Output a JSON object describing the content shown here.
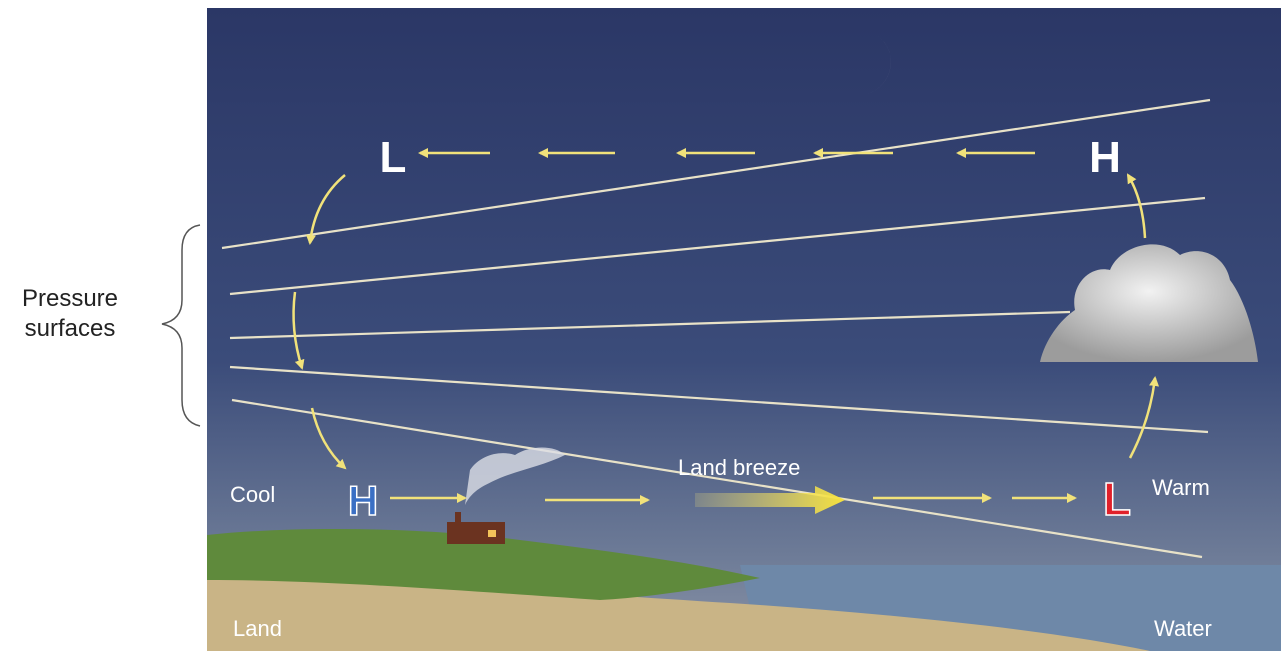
{
  "bracket_label": [
    "Pressure",
    "surfaces"
  ],
  "upper": {
    "low": "L",
    "high": "H"
  },
  "surface": {
    "high": "H",
    "low": "L",
    "cool": "Cool",
    "warm": "Warm",
    "wind": "Land breeze"
  },
  "ground": {
    "land": "Land",
    "water": "Water"
  }
}
